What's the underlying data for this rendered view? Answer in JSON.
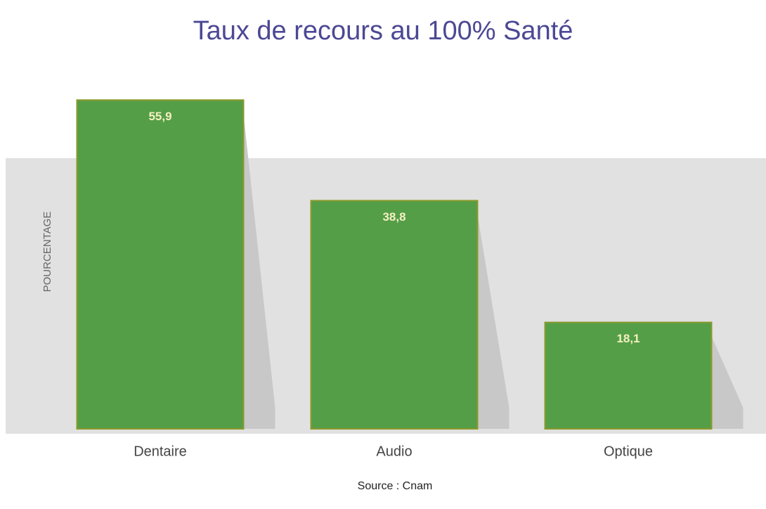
{
  "chart_data": {
    "type": "bar",
    "title": "Taux de recours au 100% Santé",
    "categories": [
      "Dentaire",
      "Audio",
      "Optique"
    ],
    "values": [
      55.9,
      38.8,
      18.1
    ],
    "value_labels": [
      "55,9",
      "38,8",
      "18,1"
    ],
    "color": "#559e48",
    "y_label": "POURCENTAGE",
    "source": "Source : Cnam",
    "ylim": [
      0,
      60
    ]
  }
}
